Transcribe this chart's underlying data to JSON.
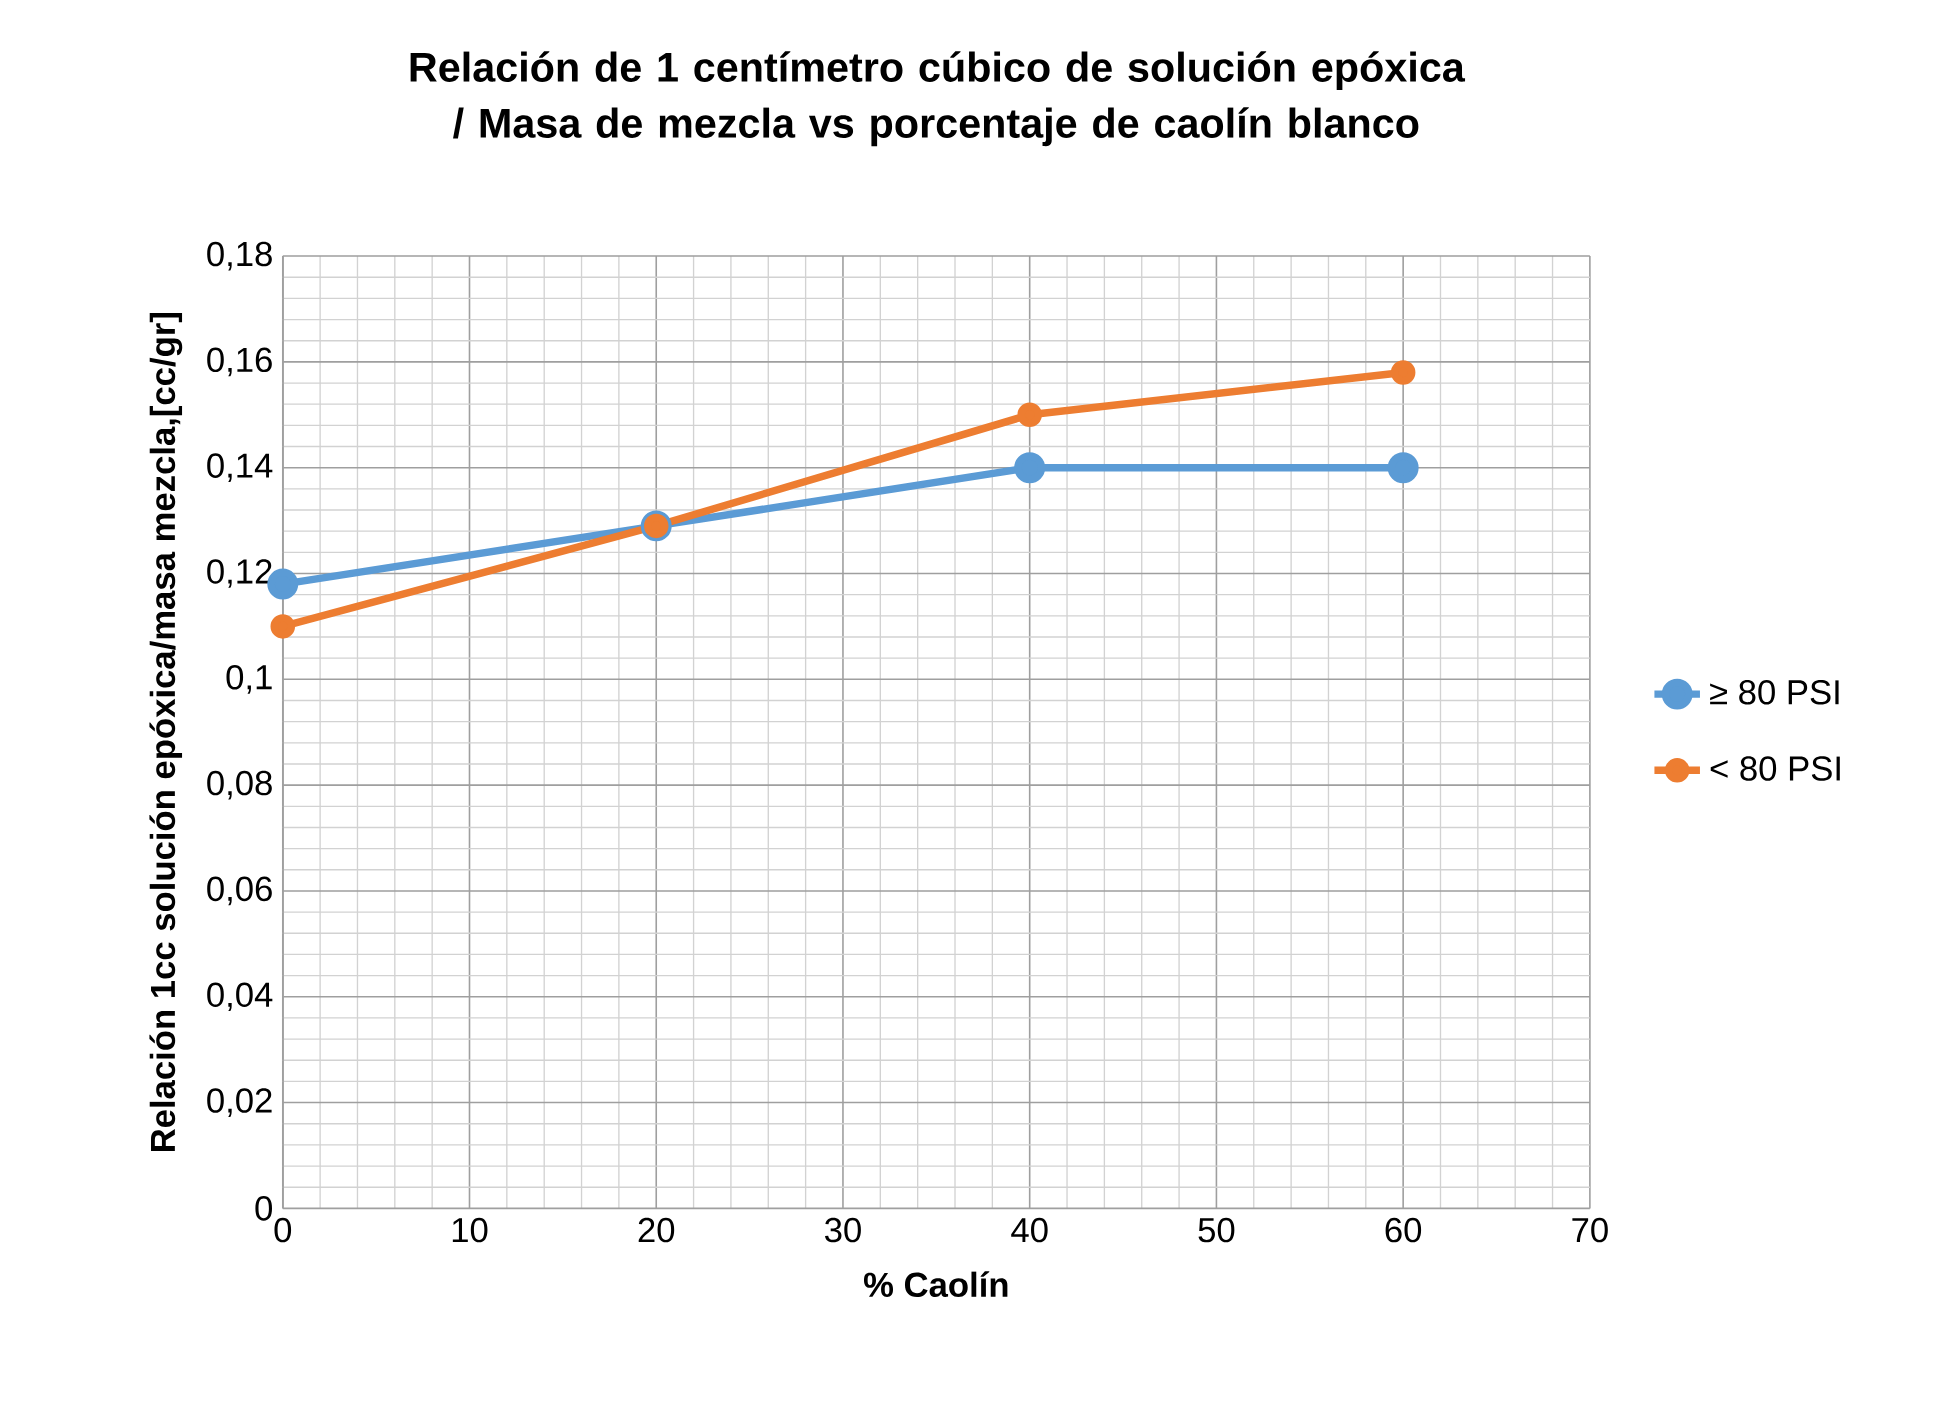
{
  "chart_data": {
    "type": "line",
    "title": "Relación de 1 centímetro cúbico de solución epóxica / Masa de mezcla vs porcentaje de caolín blanco",
    "xlabel": "% Caolín",
    "ylabel": "Relación  1cc solución epóxica/masa mezcla,[cc/gr]",
    "x": [
      0,
      20,
      40,
      60
    ],
    "series": [
      {
        "name": "≥ 80 PSI",
        "color": "#5b9bd5",
        "values": [
          0.118,
          0.129,
          0.14,
          0.14
        ]
      },
      {
        "name": "< 80 PSI",
        "color": "#ed7d31",
        "values": [
          0.11,
          0.129,
          0.15,
          0.158
        ]
      }
    ],
    "xlim": [
      0,
      70
    ],
    "xticks": [
      0,
      10,
      20,
      30,
      40,
      50,
      60,
      70
    ],
    "ylim": [
      0,
      0.18
    ],
    "yticks": [
      0,
      {
        "value": 0.02,
        "label": "0,02"
      },
      {
        "value": 0.04,
        "label": "0,04"
      },
      {
        "value": 0.06,
        "label": "0,06"
      },
      {
        "value": 0.08,
        "label": "0,08"
      },
      {
        "value": 0.1,
        "label": "0,1"
      },
      {
        "value": 0.12,
        "label": "0,12"
      },
      {
        "value": 0.14,
        "label": "0,14"
      },
      {
        "value": 0.16,
        "label": "0,16"
      },
      {
        "value": 0.18,
        "label": "0,18"
      }
    ],
    "grid": true,
    "legend": "right",
    "marker": "circle",
    "line_style": "solid"
  }
}
